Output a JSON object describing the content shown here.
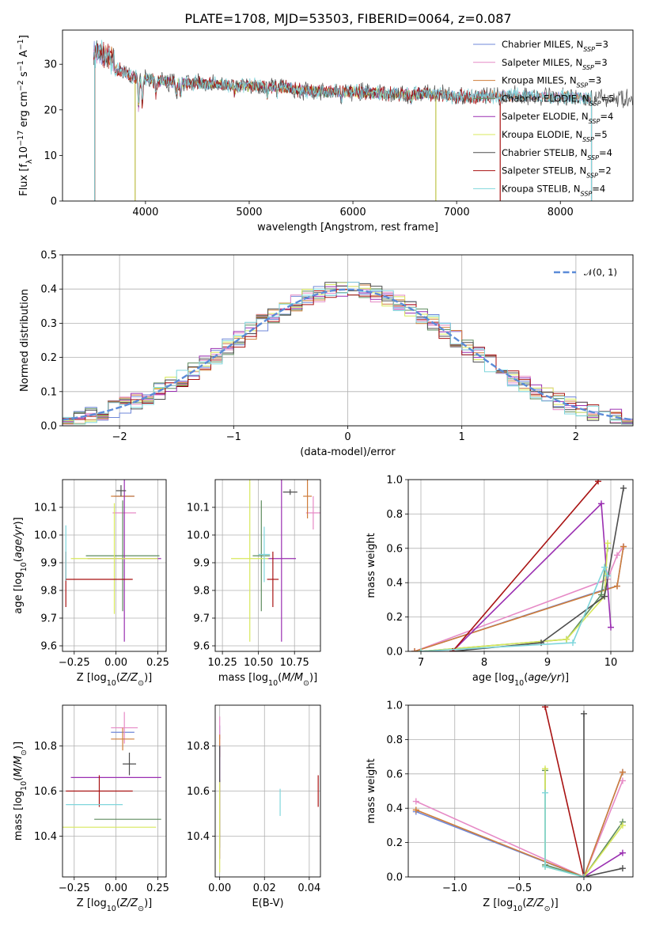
{
  "figure": {
    "title": "PLATE=1708, MJD=53503, FIBERID=0064, z=0.087"
  },
  "colors": {
    "Chabrier MILES": "#6f87d8",
    "Salpeter MILES": "#e68ac6",
    "Kroupa MILES": "#cf7d3a",
    "Chabrier ELODIE": "#5e8c5e",
    "Salpeter ELODIE": "#9a2fb1",
    "Kroupa ELODIE": "#d8e85c",
    "Chabrier STELIB": "#4d4d4d",
    "Salpeter STELIB": "#a81212",
    "Kroupa STELIB": "#7fd6dc"
  },
  "chart_data": [
    {
      "id": "spectrum",
      "type": "line",
      "xlabel": "wavelength [Angstrom, rest frame]",
      "ylabel": "Flux [f_λ10^-17 erg cm^-2 s^-1 A^-1]",
      "xlim": [
        3200,
        8700
      ],
      "ylim": [
        0,
        37.5
      ],
      "xticks": [
        4000,
        5000,
        6000,
        7000,
        8000
      ],
      "yticks": [
        0,
        10,
        20,
        30
      ],
      "legend_position": "top-right",
      "legend": [
        {
          "name": "Chabrier MILES",
          "label": "Chabrier MILES, N",
          "sub": "SSP",
          "suffix": "=3"
        },
        {
          "name": "Salpeter MILES",
          "label": "Salpeter MILES, N",
          "sub": "SSP",
          "suffix": "=3"
        },
        {
          "name": "Kroupa MILES",
          "label": "Kroupa MILES, N",
          "sub": "SSP",
          "suffix": "=3"
        },
        {
          "name": "Chabrier ELODIE",
          "label": "Chabrier ELODIE, N",
          "sub": "SSP",
          "suffix": "=5"
        },
        {
          "name": "Salpeter ELODIE",
          "label": "Salpeter ELODIE, N",
          "sub": "SSP",
          "suffix": "=4"
        },
        {
          "name": "Kroupa ELODIE",
          "label": "Kroupa ELODIE, N",
          "sub": "SSP",
          "suffix": "=5"
        },
        {
          "name": "Chabrier STELIB",
          "label": "Chabrier STELIB, N",
          "sub": "SSP",
          "suffix": "=4"
        },
        {
          "name": "Salpeter STELIB",
          "label": "Salpeter STELIB, N",
          "sub": "SSP",
          "suffix": "=2"
        },
        {
          "name": "Kroupa STELIB",
          "label": "Kroupa STELIB, N",
          "sub": "SSP",
          "suffix": "=4"
        }
      ],
      "continuum": {
        "x": [
          3500,
          3700,
          3900,
          4100,
          4300,
          4500,
          4700,
          4900,
          5100,
          5300,
          5500,
          5700,
          5900,
          6100,
          6300,
          6500,
          6700,
          6900,
          7100,
          7300,
          7500,
          7700,
          7900,
          8100,
          8300
        ],
        "y": [
          31,
          29,
          27,
          26.5,
          26,
          25.8,
          25.5,
          25.3,
          25.2,
          25,
          24.3,
          24,
          24,
          23.9,
          23.5,
          23.4,
          23.6,
          23.2,
          22.8,
          23.1,
          23.1,
          23.0,
          22.8,
          23.0,
          22.5
        ]
      },
      "spectra": [
        {
          "series": "Chabrier MILES",
          "start": 3500,
          "end": 8300
        },
        {
          "series": "Salpeter MILES",
          "start": 3500,
          "end": 8300
        },
        {
          "series": "Kroupa MILES",
          "start": 3510,
          "end": 8300
        },
        {
          "series": "Chabrier ELODIE",
          "start": 3900,
          "end": 6800
        },
        {
          "series": "Salpeter ELODIE",
          "start": 3900,
          "end": 6800
        },
        {
          "series": "Kroupa ELODIE",
          "start": 3900,
          "end": 6800
        },
        {
          "series": "Chabrier STELIB",
          "start": 3500,
          "end": 8700
        },
        {
          "series": "Salpeter STELIB",
          "start": 3500,
          "end": 7420
        },
        {
          "series": "Kroupa STELIB",
          "start": 3500,
          "end": 8300
        }
      ]
    },
    {
      "id": "residuals",
      "type": "line",
      "xlabel": "(data-model)/error",
      "ylabel": "Normed distribution",
      "xlim": [
        -2.5,
        2.5
      ],
      "ylim": [
        0,
        0.5
      ],
      "xticks": [
        -2,
        -1,
        0,
        1,
        2
      ],
      "xtick_labels": [
        "−2",
        "−1",
        "0",
        "1",
        "2"
      ],
      "yticks": [
        0,
        0.1,
        0.2,
        0.3,
        0.4,
        0.5
      ],
      "ytick_labels": [
        "0.0",
        "0.1",
        "0.2",
        "0.3",
        "0.4",
        "0.5"
      ],
      "legend_position": "top-right",
      "legend_label": "𝒩(0, 1)",
      "gaussian": {
        "mean": 0,
        "sigma": 1,
        "color": "#5b8bd8"
      },
      "bin_width": 0.1,
      "bin_start": -2.5
    },
    {
      "id": "age-vs-Z",
      "type": "scatter",
      "xlabel": "Z [log10(Z/Z⊙)]",
      "ylabel": "age [log10(age/yr)]",
      "xlim": [
        -0.32,
        0.3
      ],
      "ylim": [
        9.58,
        10.2
      ],
      "xticks": [
        -0.25,
        0.0,
        0.25
      ],
      "xtick_labels": [
        "−0.25",
        "0.00",
        "0.25"
      ],
      "yticks": [
        9.6,
        9.7,
        9.8,
        9.9,
        10.0,
        10.1
      ],
      "ytick_labels": [
        "9.6",
        "9.7",
        "9.8",
        "9.9",
        "10.0",
        "10.1"
      ],
      "points": [
        {
          "series": "Chabrier MILES",
          "x": 0.05,
          "y": 10.14,
          "xerr": 0.06,
          "yerr": 0.0
        },
        {
          "series": "Salpeter MILES",
          "x": 0.05,
          "y": 10.08,
          "xerr": 0.07,
          "yerr": 0.0
        },
        {
          "series": "Kroupa MILES",
          "x": 0.04,
          "y": 10.14,
          "xerr": 0.07,
          "yerr": 0.0
        },
        {
          "series": "Chabrier ELODIE",
          "x": 0.04,
          "y": 9.925,
          "xerr": 0.22,
          "yerr": 0.2
        },
        {
          "series": "Salpeter ELODIE",
          "x": 0.05,
          "y": 9.915,
          "xerr": 0.22,
          "yerr": 0.3
        },
        {
          "series": "Kroupa ELODIE",
          "x": -0.01,
          "y": 9.915,
          "xerr": 0.26,
          "yerr": 0.2
        },
        {
          "series": "Chabrier STELIB",
          "x": 0.03,
          "y": 10.16,
          "xerr": 0.03,
          "yerr": 0.02
        },
        {
          "series": "Salpeter STELIB",
          "x": -0.3,
          "y": 9.84,
          "xerr": 0.0,
          "yerr": 0.1
        },
        {
          "series": "Kroupa STELIB",
          "x": -0.3,
          "y": 9.935,
          "xerr": 0.0,
          "yerr": 0.1
        },
        {
          "series": "Salpeter STELIB",
          "x": -0.3,
          "y": 9.84,
          "xerr": 0.0,
          "yerr": 0.0,
          "x_lo": -0.3,
          "x_hi": 0.1
        }
      ]
    },
    {
      "id": "age-vs-mass",
      "type": "scatter",
      "xlabel": "mass [log10(M/M⊙)]",
      "ylabel": "",
      "xlim": [
        10.2,
        10.93
      ],
      "ylim": [
        9.58,
        10.2
      ],
      "xticks": [
        10.25,
        10.5,
        10.75
      ],
      "xtick_labels": [
        "10.25",
        "10.50",
        "10.75"
      ],
      "yticks": [
        9.6,
        9.7,
        9.8,
        9.9,
        10.0,
        10.1
      ],
      "ytick_labels": [
        "9.6",
        "9.7",
        "9.8",
        "9.9",
        "10.0",
        "10.1"
      ],
      "points": [
        {
          "series": "Chabrier MILES",
          "x": 10.88,
          "y": 10.14,
          "xerr": 0.0,
          "yerr": 0.0
        },
        {
          "series": "Salpeter MILES",
          "x": 10.88,
          "y": 10.08,
          "xerr": 0.05,
          "yerr": 0.06
        },
        {
          "series": "Kroupa MILES",
          "x": 10.84,
          "y": 10.14,
          "xerr": 0.03,
          "yerr": 0.08
        },
        {
          "series": "Chabrier ELODIE",
          "x": 10.52,
          "y": 9.925,
          "xerr": 0.06,
          "yerr": 0.2
        },
        {
          "series": "Salpeter ELODIE",
          "x": 10.66,
          "y": 9.915,
          "xerr": 0.1,
          "yerr": 0.3
        },
        {
          "series": "Kroupa ELODIE",
          "x": 10.44,
          "y": 9.915,
          "xerr": 0.13,
          "yerr": 0.3
        },
        {
          "series": "Chabrier STELIB",
          "x": 10.72,
          "y": 10.155,
          "xerr": 0.05,
          "yerr": 0.01
        },
        {
          "series": "Salpeter STELIB",
          "x": 10.6,
          "y": 9.84,
          "xerr": 0.04,
          "yerr": 0.1
        },
        {
          "series": "Kroupa STELIB",
          "x": 10.54,
          "y": 9.93,
          "xerr": 0.04,
          "yerr": 0.1
        }
      ]
    },
    {
      "id": "mass-weight-vs-age",
      "type": "line",
      "xlabel": "age [log10(age/yr)]",
      "ylabel": "mass weight",
      "xlim": [
        6.8,
        10.35
      ],
      "ylim": [
        0,
        1.0
      ],
      "xticks": [
        7,
        8,
        9,
        10
      ],
      "yticks": [
        0,
        0.2,
        0.4,
        0.6,
        0.8,
        1.0
      ],
      "ytick_labels": [
        "0.0",
        "0.2",
        "0.4",
        "0.6",
        "0.8",
        "1.0"
      ],
      "series": [
        {
          "name": "Chabrier MILES",
          "x": [
            6.9,
            9.9,
            10.1,
            10.2
          ],
          "y": [
            0.0,
            0.36,
            0.38,
            0.61
          ]
        },
        {
          "name": "Salpeter MILES",
          "x": [
            6.9,
            9.95,
            10.1,
            10.2
          ],
          "y": [
            0.0,
            0.42,
            0.56,
            0.61
          ]
        },
        {
          "name": "Kroupa MILES",
          "x": [
            6.9,
            10.1,
            10.2
          ],
          "y": [
            0.0,
            0.38,
            0.61
          ]
        },
        {
          "name": "Chabrier ELODIE",
          "x": [
            7.0,
            9.3,
            9.85,
            9.95
          ],
          "y": [
            0.0,
            0.07,
            0.33,
            0.6
          ]
        },
        {
          "name": "Salpeter ELODIE",
          "x": [
            7.5,
            9.85,
            10.0
          ],
          "y": [
            0.0,
            0.86,
            0.14
          ]
        },
        {
          "name": "Kroupa ELODIE",
          "x": [
            7.0,
            9.3,
            9.9,
            9.95
          ],
          "y": [
            0.0,
            0.07,
            0.32,
            0.63
          ]
        },
        {
          "name": "Chabrier STELIB",
          "x": [
            7.5,
            8.9,
            9.9,
            10.2
          ],
          "y": [
            0.0,
            0.05,
            0.32,
            0.95
          ]
        },
        {
          "name": "Salpeter STELIB",
          "x": [
            7.5,
            9.8
          ],
          "y": [
            0.0,
            0.99
          ]
        },
        {
          "name": "Kroupa STELIB",
          "x": [
            7.0,
            9.4,
            9.9,
            9.95
          ],
          "y": [
            0.0,
            0.05,
            0.49,
            0.44
          ]
        }
      ]
    },
    {
      "id": "mass-vs-Z",
      "type": "scatter",
      "xlabel": "Z [log10(Z/Z⊙)]",
      "ylabel": "mass [log10(M/M⊙)]",
      "xlim": [
        -0.32,
        0.3
      ],
      "ylim": [
        10.22,
        10.98
      ],
      "xticks": [
        -0.25,
        0.0,
        0.25
      ],
      "xtick_labels": [
        "−0.25",
        "0.00",
        "0.25"
      ],
      "yticks": [
        10.4,
        10.6,
        10.8
      ],
      "ytick_labels": [
        "10.4",
        "10.6",
        "10.8"
      ],
      "points": [
        {
          "series": "Chabrier MILES",
          "x": 0.04,
          "y": 10.86,
          "xerr": 0.07,
          "yerr": 0.0
        },
        {
          "series": "Salpeter MILES",
          "x": 0.05,
          "y": 10.88,
          "xerr": 0.08,
          "yerr": 0.07
        },
        {
          "series": "Kroupa MILES",
          "x": 0.04,
          "y": 10.83,
          "xerr": 0.07,
          "yerr": 0.05
        },
        {
          "series": "Chabrier ELODIE",
          "x": 0.07,
          "y": 10.475,
          "xerr": 0.2,
          "yerr": 0.0
        },
        {
          "series": "Salpeter ELODIE",
          "x": 0.0,
          "y": 10.66,
          "xerr": 0.27,
          "yerr": 0.0
        },
        {
          "series": "Kroupa ELODIE",
          "x": -0.09,
          "y": 10.44,
          "xerr": 0.33,
          "yerr": 0.0
        },
        {
          "series": "Chabrier STELIB",
          "x": 0.08,
          "y": 10.72,
          "xerr": 0.04,
          "yerr": 0.05
        },
        {
          "series": "Salpeter STELIB",
          "x": -0.1,
          "y": 10.6,
          "xerr": 0.2,
          "yerr": 0.07
        },
        {
          "series": "Kroupa STELIB",
          "x": -0.13,
          "y": 10.54,
          "xerr": 0.17,
          "yerr": 0.0
        }
      ]
    },
    {
      "id": "mass-vs-ebv",
      "type": "scatter",
      "xlabel": "E(B-V)",
      "ylabel": "",
      "xlim": [
        -0.002,
        0.045
      ],
      "ylim": [
        10.22,
        10.98
      ],
      "xticks": [
        0.0,
        0.02,
        0.04
      ],
      "xtick_labels": [
        "0.00",
        "0.02",
        "0.04"
      ],
      "yticks": [
        10.4,
        10.6,
        10.8
      ],
      "ytick_labels": [
        "10.4",
        "10.6",
        "10.8"
      ],
      "points": [
        {
          "series": "Chabrier MILES",
          "x": 0.0,
          "y": 10.86,
          "xerr": 0.0,
          "yerr": 0.03
        },
        {
          "series": "Salpeter MILES",
          "x": 0.0,
          "y": 10.86,
          "xerr": 0.0,
          "yerr": 0.07
        },
        {
          "series": "Kroupa MILES",
          "x": 0.0,
          "y": 10.8,
          "xerr": 0.0,
          "yerr": 0.05
        },
        {
          "series": "Chabrier ELODIE",
          "x": 0.0,
          "y": 10.5,
          "xerr": 0.0,
          "yerr": 0.15
        },
        {
          "series": "Salpeter ELODIE",
          "x": 0.0,
          "y": 10.55,
          "xerr": 0.0,
          "yerr": 0.25
        },
        {
          "series": "Kroupa ELODIE",
          "x": 0.0,
          "y": 10.44,
          "xerr": 0.0,
          "yerr": 0.2
        },
        {
          "series": "Chabrier STELIB",
          "x": 0.0,
          "y": 10.72,
          "xerr": 0.0,
          "yerr": 0.08
        },
        {
          "series": "Salpeter STELIB",
          "x": 0.044,
          "y": 10.6,
          "xerr": 0.0,
          "yerr": 0.07
        },
        {
          "series": "Kroupa STELIB",
          "x": 0.027,
          "y": 10.55,
          "xerr": 0.0,
          "yerr": 0.06
        }
      ]
    },
    {
      "id": "mass-weight-vs-Z",
      "type": "line",
      "xlabel": "Z [log10(Z/Z⊙)]",
      "ylabel": "mass weight",
      "xlim": [
        -1.36,
        0.38
      ],
      "ylim": [
        0,
        1.0
      ],
      "xticks": [
        -1.0,
        -0.5,
        0.0
      ],
      "xtick_labels": [
        "−1.0",
        "−0.5",
        "0.0"
      ],
      "yticks": [
        0,
        0.2,
        0.4,
        0.6,
        0.8,
        1.0
      ],
      "ytick_labels": [
        "0.0",
        "0.2",
        "0.4",
        "0.6",
        "0.8",
        "1.0"
      ],
      "series": [
        {
          "name": "Chabrier MILES",
          "x": [
            -1.3,
            0.0,
            0.3
          ],
          "y": [
            0.38,
            0.0,
            0.61
          ]
        },
        {
          "name": "Salpeter MILES",
          "x": [
            -1.3,
            0.0,
            0.3
          ],
          "y": [
            0.44,
            0.0,
            0.56
          ]
        },
        {
          "name": "Kroupa MILES",
          "x": [
            -1.3,
            0.0,
            0.3
          ],
          "y": [
            0.39,
            0.0,
            0.61
          ]
        },
        {
          "name": "Chabrier ELODIE",
          "x": [
            -0.3,
            -0.3,
            0.0,
            0.3
          ],
          "y": [
            0.62,
            0.07,
            0.0,
            0.32
          ]
        },
        {
          "name": "Salpeter ELODIE",
          "x": [
            0.0,
            0.3
          ],
          "y": [
            0.0,
            0.14
          ]
        },
        {
          "name": "Kroupa ELODIE",
          "x": [
            -0.3,
            -0.3,
            0.0,
            0.3
          ],
          "y": [
            0.63,
            0.06,
            0.0,
            0.3
          ]
        },
        {
          "name": "Chabrier STELIB",
          "x": [
            0.0,
            0.0,
            0.3
          ],
          "y": [
            0.95,
            0.0,
            0.05
          ]
        },
        {
          "name": "Salpeter STELIB",
          "x": [
            -0.3,
            0.0
          ],
          "y": [
            0.99,
            0.0
          ]
        },
        {
          "name": "Kroupa STELIB",
          "x": [
            -0.3,
            -0.3,
            0.0
          ],
          "y": [
            0.49,
            0.06,
            0.0
          ]
        }
      ]
    }
  ]
}
